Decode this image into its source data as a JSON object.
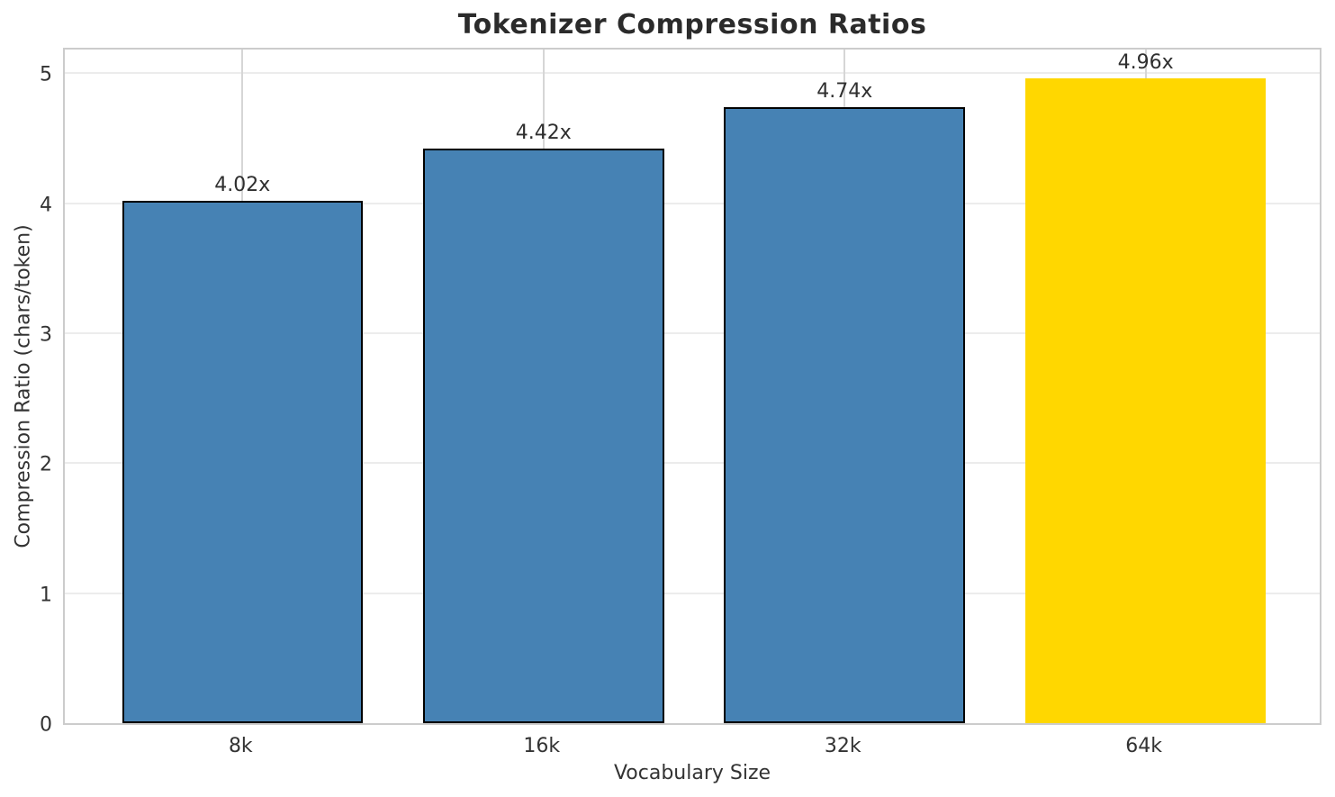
{
  "title": "Tokenizer Compression Ratios",
  "chart_data": {
    "type": "bar",
    "title": "Tokenizer Compression Ratios",
    "xlabel": "Vocabulary Size",
    "ylabel": "Compression Ratio (chars/token)",
    "categories": [
      "8k",
      "16k",
      "32k",
      "64k"
    ],
    "values": [
      4.02,
      4.42,
      4.74,
      4.96
    ],
    "bar_labels": [
      "4.02x",
      "4.42x",
      "4.74x",
      "4.96x"
    ],
    "yticks": [
      "0",
      "1",
      "2",
      "3",
      "4",
      "5"
    ],
    "ytick_values": [
      0,
      1,
      2,
      3,
      4,
      5
    ],
    "ylim": [
      0,
      5.21
    ],
    "grid": true,
    "legend_position": "none",
    "bar_colors": [
      "#4682B4",
      "#4682B4",
      "#4682B4",
      "#FFD700"
    ],
    "bar_edge_colors": [
      "#000000",
      "#000000",
      "#000000",
      "none"
    ],
    "colors": {
      "background": "#FFFFFF",
      "grid_horizontal": "#ECECEC",
      "grid_vertical": "#D6D6D6",
      "spine": "#CCCCCC",
      "tick_text": "#333333",
      "title_text": "#2B2B2B",
      "highlight_bar": "#FFD700",
      "base_bar": "#4682B4"
    }
  }
}
